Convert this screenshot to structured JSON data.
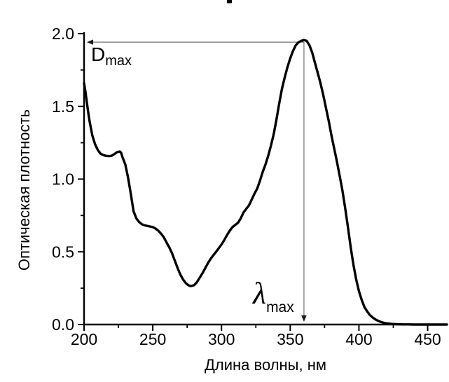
{
  "page": {
    "background": "#ffffff"
  },
  "colors": {
    "curve": "#000000",
    "axis": "#000000",
    "arrow_line": "#737373",
    "arrow_head": "#1a1a1a",
    "text": "#000000",
    "background": "#ffffff"
  },
  "chart_data": {
    "type": "line",
    "title": "",
    "xlabel": "Длина волны, нм",
    "ylabel": "Оптическая плотность",
    "xlim": [
      200,
      464
    ],
    "ylim": [
      0,
      2.0
    ],
    "grid": false,
    "legend_position": "none",
    "x_ticks": {
      "major": [
        200,
        250,
        300,
        350,
        400,
        450
      ],
      "labels": [
        "200",
        "250",
        "300",
        "350",
        "400",
        "450"
      ],
      "minor": [
        225,
        275,
        325,
        375,
        425
      ]
    },
    "y_ticks": {
      "major": [
        0,
        0.5,
        1.0,
        1.5,
        2.0
      ],
      "labels": [
        "0.0",
        "0.5",
        "1.0",
        "1.5",
        "2.0"
      ],
      "minor": [
        0.25,
        0.75,
        1.25,
        1.75
      ]
    },
    "series": [
      {
        "name": "absorption-spectrum",
        "color": "#000000",
        "x": [
          200,
          201,
          202,
          203,
          204,
          205,
          206,
          208,
          210,
          212,
          214,
          216,
          218,
          220,
          222,
          224,
          226,
          227,
          228,
          230,
          232,
          234,
          236,
          238,
          240,
          242,
          244,
          246,
          248,
          250,
          252,
          254,
          256,
          258,
          260,
          262,
          264,
          266,
          268,
          270,
          272,
          274,
          276,
          277,
          278,
          280,
          282,
          284,
          286,
          288,
          290,
          292,
          294,
          296,
          298,
          300,
          302,
          304,
          306,
          308,
          310,
          312,
          314,
          316,
          318,
          320,
          322,
          324,
          326,
          328,
          330,
          332,
          334,
          336,
          338,
          340,
          342,
          344,
          346,
          348,
          350,
          352,
          354,
          356,
          358,
          360,
          362,
          364,
          366,
          368,
          370,
          372,
          374,
          376,
          378,
          380,
          382,
          384,
          386,
          388,
          390,
          392,
          394,
          396,
          398,
          400,
          402,
          404,
          406,
          408,
          410,
          412,
          414,
          416,
          418,
          420,
          424,
          428,
          432,
          436,
          440,
          445,
          450,
          455,
          460,
          464
        ],
        "y": [
          1.66,
          1.6,
          1.53,
          1.46,
          1.4,
          1.35,
          1.3,
          1.24,
          1.2,
          1.175,
          1.165,
          1.16,
          1.158,
          1.16,
          1.172,
          1.185,
          1.19,
          1.18,
          1.15,
          1.1,
          1.01,
          0.9,
          0.78,
          0.73,
          0.705,
          0.69,
          0.682,
          0.678,
          0.674,
          0.67,
          0.66,
          0.645,
          0.625,
          0.6,
          0.565,
          0.53,
          0.49,
          0.44,
          0.39,
          0.345,
          0.31,
          0.285,
          0.27,
          0.265,
          0.265,
          0.27,
          0.29,
          0.32,
          0.35,
          0.385,
          0.42,
          0.45,
          0.475,
          0.5,
          0.525,
          0.55,
          0.58,
          0.615,
          0.645,
          0.67,
          0.685,
          0.7,
          0.73,
          0.77,
          0.795,
          0.82,
          0.86,
          0.9,
          0.935,
          0.99,
          1.05,
          1.1,
          1.16,
          1.23,
          1.31,
          1.41,
          1.52,
          1.62,
          1.7,
          1.77,
          1.83,
          1.88,
          1.92,
          1.94,
          1.95,
          1.956,
          1.95,
          1.92,
          1.87,
          1.8,
          1.73,
          1.66,
          1.58,
          1.49,
          1.4,
          1.3,
          1.21,
          1.12,
          1.02,
          0.92,
          0.8,
          0.67,
          0.53,
          0.41,
          0.31,
          0.23,
          0.17,
          0.12,
          0.09,
          0.065,
          0.048,
          0.035,
          0.025,
          0.018,
          0.012,
          0.008,
          0.004,
          0.002,
          0.001,
          0.001,
          0,
          0,
          0,
          0,
          0,
          0
        ]
      }
    ],
    "peak": {
      "x": 360,
      "y": 1.956
    },
    "annotations": [
      {
        "id": "d-max",
        "text": "D",
        "subscript": "max",
        "arrow": "horizontal-from-peak-to-y-axis"
      },
      {
        "id": "lambda-max",
        "text": "λ",
        "subscript": "max",
        "arrow": "vertical-from-peak-to-x-axis"
      }
    ]
  }
}
